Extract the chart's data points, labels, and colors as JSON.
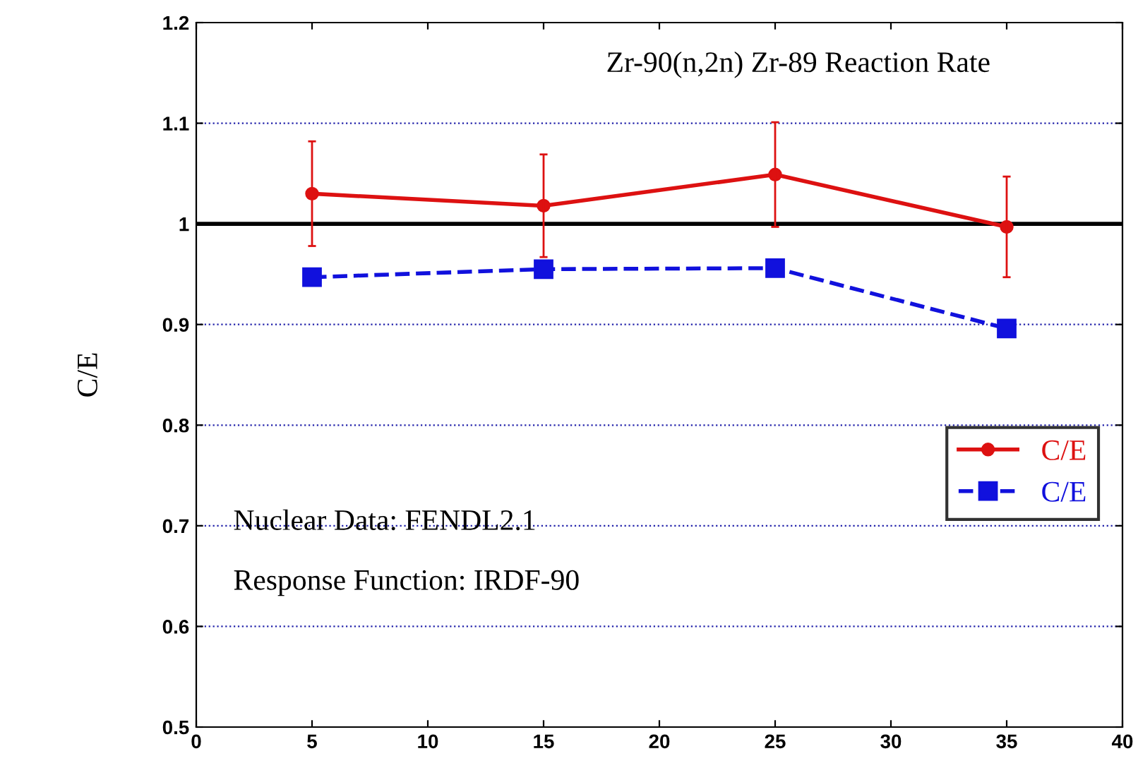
{
  "chart_data": {
    "type": "line",
    "title": "Zr-90(n,2n) Zr-89 Reaction Rate",
    "ylabel": "C/E",
    "x": [
      5,
      15,
      25,
      35
    ],
    "series": [
      {
        "name": "C/E",
        "color": "#dd1111",
        "values": [
          1.03,
          1.018,
          1.049,
          0.997
        ],
        "errors": [
          0.052,
          0.051,
          0.052,
          0.05
        ],
        "marker": "circle",
        "line_style": "solid"
      },
      {
        "name": "C/E",
        "color": "#1111dd",
        "values": [
          0.947,
          0.955,
          0.956,
          0.896
        ],
        "marker": "square",
        "line_style": "dashed"
      }
    ],
    "xlim": [
      0,
      40
    ],
    "xticks": [
      0,
      5,
      10,
      15,
      20,
      25,
      30,
      35,
      40
    ],
    "ylim": [
      0.5,
      1.2
    ],
    "yticks": [
      0.5,
      0.6,
      0.7,
      0.8,
      0.9,
      1,
      1.1,
      1.2
    ],
    "ref_lines": [
      {
        "axis": "y",
        "value": 1,
        "color": "#000000"
      }
    ],
    "grid": "y",
    "legend": "right",
    "annotations": [
      "Nuclear Data: FENDL2.1",
      "Response Function: IRDF-90"
    ]
  }
}
